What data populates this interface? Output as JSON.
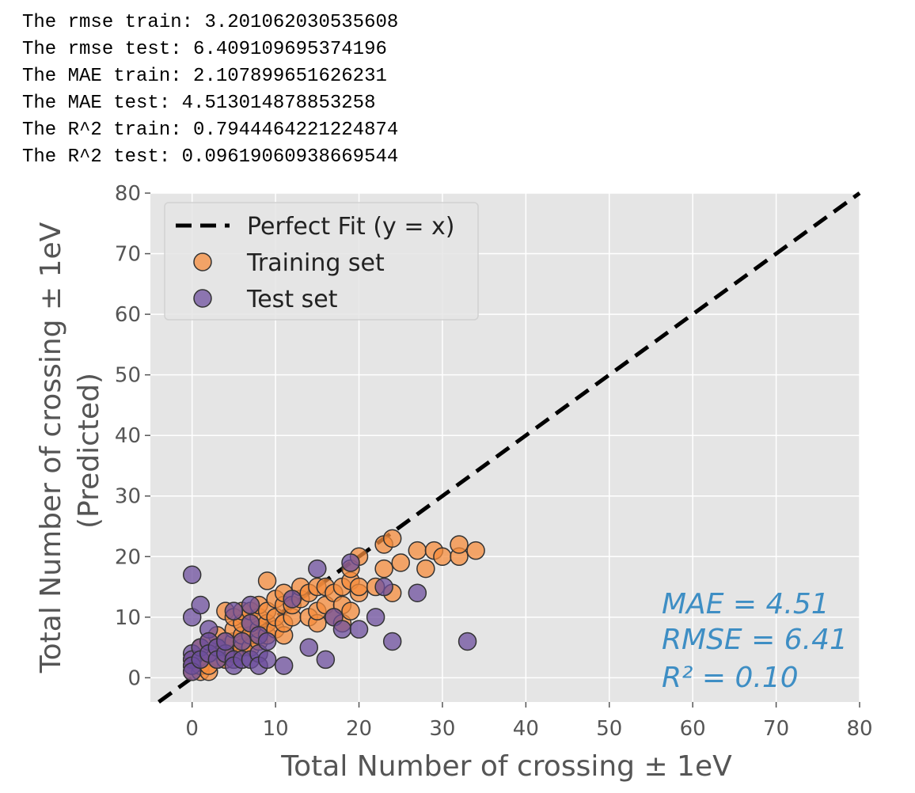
{
  "output": {
    "lines": [
      "The rmse train: 3.201062030535608",
      "The rmse test: 6.409109695374196",
      "The MAE train: 2.107899651626231",
      "The MAE test: 4.513014878853258",
      "The R^2 train: 0.7944464221224874",
      "The R^2 test: 0.09619060938669544"
    ]
  },
  "chart_data": {
    "type": "scatter",
    "xlabel": "Total Number of crossing ± 1eV",
    "ylabel_line1": "Total Number of crossing ± 1eV",
    "ylabel_line2": "(Predicted)",
    "xlim": [
      -5,
      80
    ],
    "ylim": [
      -4,
      80
    ],
    "xticks": [
      0,
      10,
      20,
      30,
      40,
      50,
      60,
      70,
      80
    ],
    "yticks": [
      0,
      10,
      20,
      30,
      40,
      50,
      60,
      70,
      80
    ],
    "grid": true,
    "legend_position": "upper-left",
    "colors": {
      "background": "#e5e5e5",
      "grid": "#ffffff",
      "train": "#f58c3c",
      "test": "#6e4f9e",
      "marker_edge": "#333333",
      "fit_line": "#000000",
      "annotation": "#3e8ec4"
    },
    "fit_line": {
      "name": "Perfect Fit (y = x)",
      "from": [
        -5,
        -5
      ],
      "to": [
        80,
        80
      ]
    },
    "series": [
      {
        "name": "Training set",
        "points": [
          [
            0,
            1
          ],
          [
            0,
            2
          ],
          [
            0,
            3
          ],
          [
            1,
            1
          ],
          [
            1,
            2
          ],
          [
            1,
            3
          ],
          [
            1,
            5
          ],
          [
            2,
            1
          ],
          [
            2,
            2
          ],
          [
            2,
            4
          ],
          [
            2,
            6
          ],
          [
            3,
            3
          ],
          [
            3,
            5
          ],
          [
            3,
            7
          ],
          [
            4,
            3
          ],
          [
            4,
            5
          ],
          [
            4,
            6
          ],
          [
            4,
            11
          ],
          [
            5,
            4
          ],
          [
            5,
            6
          ],
          [
            5,
            8
          ],
          [
            5,
            10
          ],
          [
            6,
            5
          ],
          [
            6,
            7
          ],
          [
            6,
            9
          ],
          [
            6,
            11
          ],
          [
            7,
            5
          ],
          [
            7,
            7
          ],
          [
            7,
            9
          ],
          [
            7,
            11
          ],
          [
            8,
            6
          ],
          [
            8,
            8
          ],
          [
            8,
            10
          ],
          [
            8,
            12
          ],
          [
            9,
            7
          ],
          [
            9,
            9
          ],
          [
            9,
            11
          ],
          [
            9,
            16
          ],
          [
            10,
            8
          ],
          [
            10,
            10
          ],
          [
            10,
            13
          ],
          [
            11,
            7
          ],
          [
            11,
            9
          ],
          [
            11,
            12
          ],
          [
            11,
            14
          ],
          [
            12,
            10
          ],
          [
            12,
            12
          ],
          [
            13,
            13
          ],
          [
            13,
            15
          ],
          [
            14,
            10
          ],
          [
            14,
            14
          ],
          [
            15,
            9
          ],
          [
            15,
            11
          ],
          [
            15,
            15
          ],
          [
            16,
            12
          ],
          [
            16,
            15
          ],
          [
            17,
            10
          ],
          [
            17,
            14
          ],
          [
            18,
            9
          ],
          [
            18,
            12
          ],
          [
            18,
            15
          ],
          [
            19,
            11
          ],
          [
            19,
            16
          ],
          [
            19,
            18
          ],
          [
            20,
            14
          ],
          [
            20,
            20
          ],
          [
            20,
            15
          ],
          [
            22,
            15
          ],
          [
            23,
            18
          ],
          [
            23,
            22
          ],
          [
            24,
            14
          ],
          [
            24,
            23
          ],
          [
            25,
            19
          ],
          [
            27,
            21
          ],
          [
            28,
            18
          ],
          [
            29,
            21
          ],
          [
            30,
            20
          ],
          [
            32,
            20
          ],
          [
            32,
            22
          ],
          [
            34,
            21
          ]
        ]
      },
      {
        "name": "Test set",
        "points": [
          [
            0,
            17
          ],
          [
            0,
            10
          ],
          [
            0,
            4
          ],
          [
            0,
            3
          ],
          [
            0,
            2
          ],
          [
            0,
            1
          ],
          [
            1,
            12
          ],
          [
            1,
            5
          ],
          [
            1,
            3
          ],
          [
            2,
            8
          ],
          [
            2,
            6
          ],
          [
            2,
            4
          ],
          [
            3,
            5
          ],
          [
            3,
            3
          ],
          [
            4,
            4
          ],
          [
            4,
            6
          ],
          [
            5,
            11
          ],
          [
            5,
            3
          ],
          [
            5,
            2
          ],
          [
            6,
            6
          ],
          [
            6,
            3
          ],
          [
            7,
            12
          ],
          [
            7,
            9
          ],
          [
            7,
            3
          ],
          [
            8,
            7
          ],
          [
            8,
            4
          ],
          [
            8,
            2
          ],
          [
            9,
            6
          ],
          [
            9,
            3
          ],
          [
            11,
            2
          ],
          [
            12,
            13
          ],
          [
            14,
            5
          ],
          [
            15,
            18
          ],
          [
            16,
            3
          ],
          [
            17,
            10
          ],
          [
            18,
            8
          ],
          [
            19,
            19
          ],
          [
            20,
            8
          ],
          [
            22,
            10
          ],
          [
            23,
            15
          ],
          [
            24,
            6
          ],
          [
            27,
            14
          ],
          [
            33,
            6
          ]
        ]
      }
    ],
    "annotations": [
      "MAE = 4.51",
      "RMSE = 6.41",
      "R² = 0.10"
    ]
  }
}
